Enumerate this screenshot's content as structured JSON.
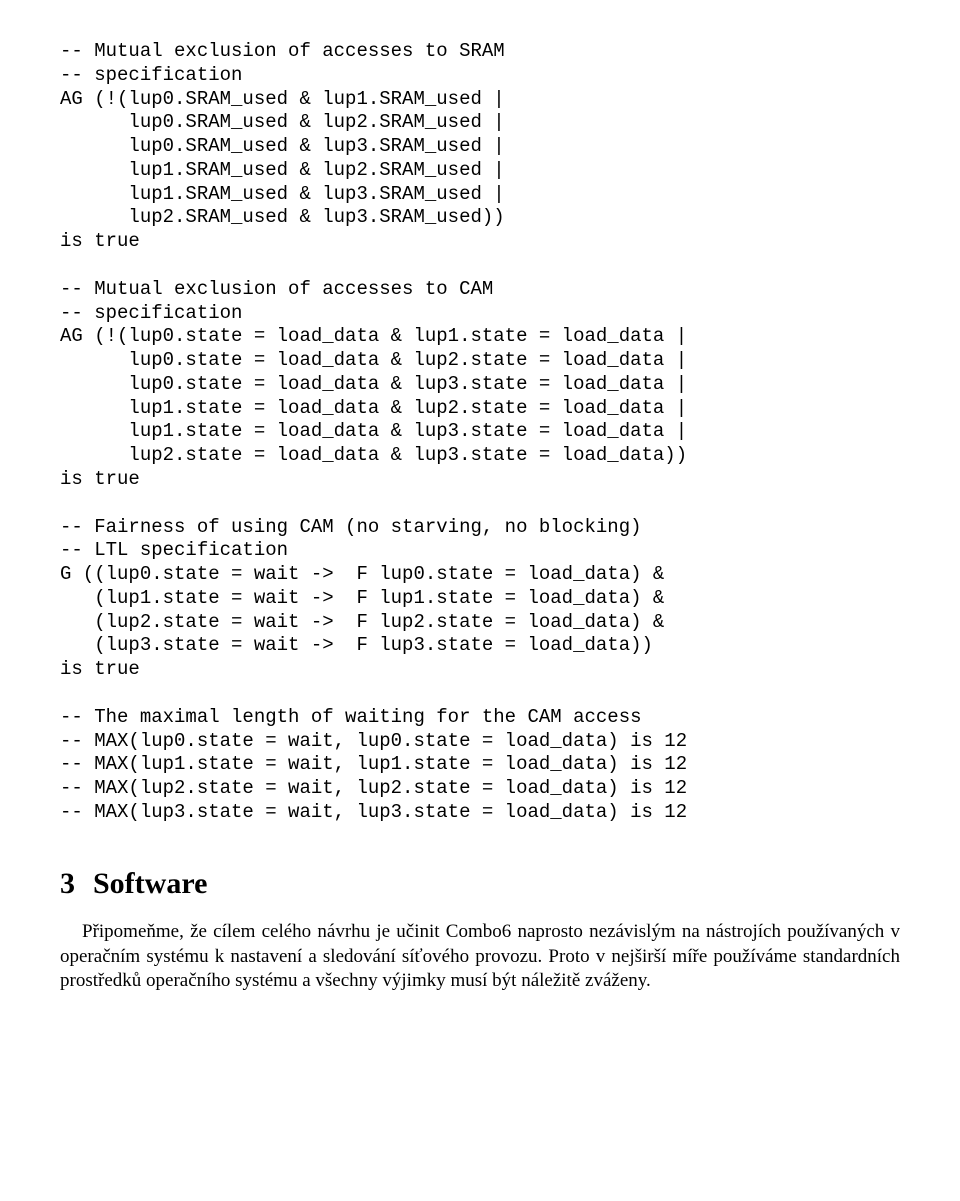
{
  "block1": {
    "lines": [
      "-- Mutual exclusion of accesses to SRAM",
      "-- specification",
      "AG (!(lup0.SRAM_used & lup1.SRAM_used |",
      "      lup0.SRAM_used & lup2.SRAM_used |",
      "      lup0.SRAM_used & lup3.SRAM_used |",
      "      lup1.SRAM_used & lup2.SRAM_used |",
      "      lup1.SRAM_used & lup3.SRAM_used |",
      "      lup2.SRAM_used & lup3.SRAM_used))",
      "is true"
    ]
  },
  "block2": {
    "lines": [
      "-- Mutual exclusion of accesses to CAM",
      "-- specification",
      "AG (!(lup0.state = load_data & lup1.state = load_data |",
      "      lup0.state = load_data & lup2.state = load_data |",
      "      lup0.state = load_data & lup3.state = load_data |",
      "      lup1.state = load_data & lup2.state = load_data |",
      "      lup1.state = load_data & lup3.state = load_data |",
      "      lup2.state = load_data & lup3.state = load_data))",
      "is true"
    ]
  },
  "block3": {
    "lines": [
      "-- Fairness of using CAM (no starving, no blocking)",
      "-- LTL specification",
      "G ((lup0.state = wait ->  F lup0.state = load_data) &",
      "   (lup1.state = wait ->  F lup1.state = load_data) &",
      "   (lup2.state = wait ->  F lup2.state = load_data) &",
      "   (lup3.state = wait ->  F lup3.state = load_data))",
      "is true"
    ]
  },
  "block4": {
    "lines": [
      "-- The maximal length of waiting for the CAM access",
      "-- MAX(lup0.state = wait, lup0.state = load_data) is 12",
      "-- MAX(lup1.state = wait, lup1.state = load_data) is 12",
      "-- MAX(lup2.state = wait, lup2.state = load_data) is 12",
      "-- MAX(lup3.state = wait, lup3.state = load_data) is 12"
    ]
  },
  "section": {
    "number": "3",
    "title": "Software"
  },
  "paragraph": "Připomeňme, že cílem celého návrhu je učinit Combo6 naprosto nezávislým na nástrojích používaných v operačním systému k nastavení a sledování síťového provozu. Proto v nejširší míře používáme standardních prostředků operačního systému a všechny výjimky musí být náležitě zváženy."
}
